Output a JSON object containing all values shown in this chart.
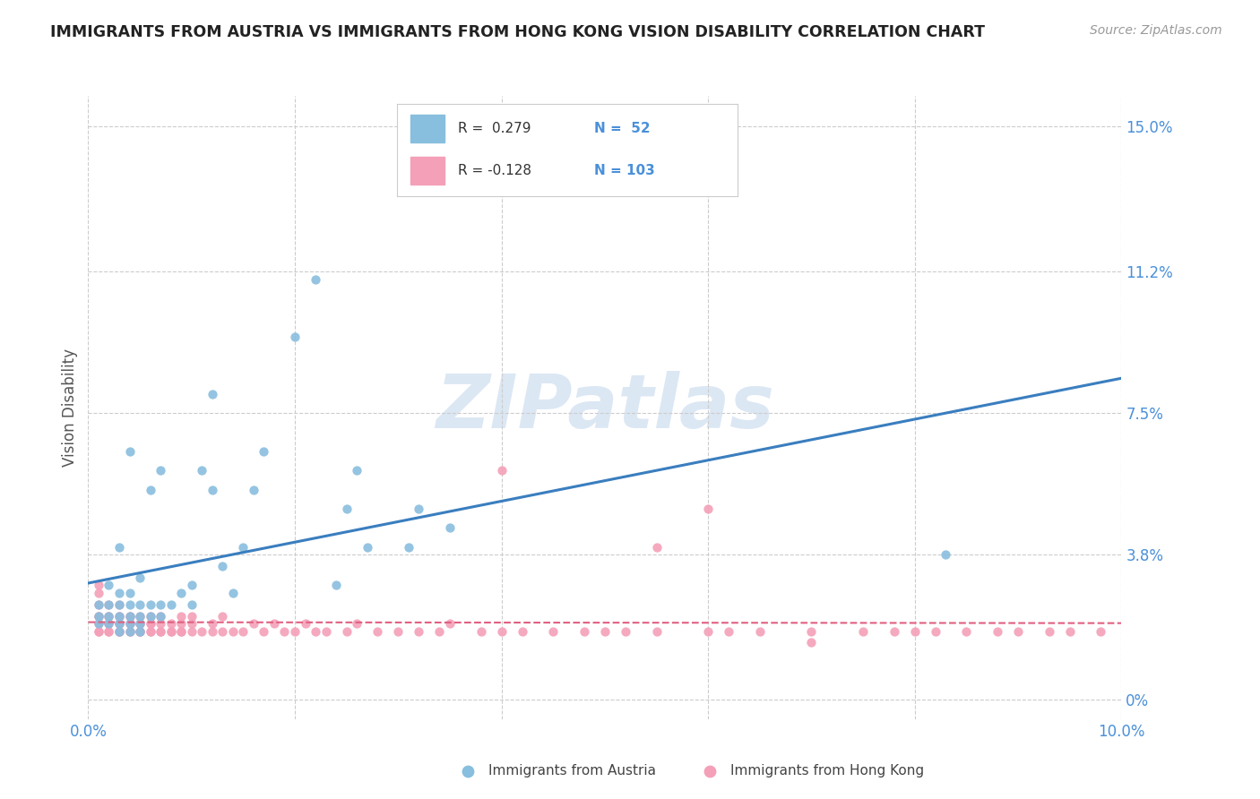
{
  "title": "IMMIGRANTS FROM AUSTRIA VS IMMIGRANTS FROM HONG KONG VISION DISABILITY CORRELATION CHART",
  "source": "Source: ZipAtlas.com",
  "ylabel": "Vision Disability",
  "xlim": [
    0.0,
    0.1
  ],
  "ylim": [
    -0.005,
    0.158
  ],
  "yticks": [
    0.0,
    0.038,
    0.075,
    0.112,
    0.15
  ],
  "ytick_labels": [
    "0%",
    "3.8%",
    "7.5%",
    "11.2%",
    "15.0%"
  ],
  "xticks": [
    0.0,
    0.02,
    0.04,
    0.06,
    0.08,
    0.1
  ],
  "xtick_labels": [
    "0.0%",
    "",
    "",
    "",
    "",
    "10.0%"
  ],
  "color_austria": "#88bede",
  "color_hk": "#f4a0b8",
  "trend_color_austria": "#3a7ebf",
  "trend_color_hk": "#e06080",
  "R_austria": "0.279",
  "N_austria": "52",
  "R_hk": "-0.128",
  "N_hk": "103",
  "legend_label_austria": "Immigrants from Austria",
  "legend_label_hk": "Immigrants from Hong Kong",
  "watermark": "ZIPatlas",
  "bg": "#ffffff",
  "grid_color": "#cccccc",
  "title_color": "#222222",
  "tick_color": "#4a90d9",
  "austria_x": [
    0.001,
    0.001,
    0.001,
    0.002,
    0.002,
    0.002,
    0.002,
    0.003,
    0.003,
    0.003,
    0.003,
    0.003,
    0.003,
    0.004,
    0.004,
    0.004,
    0.004,
    0.004,
    0.004,
    0.005,
    0.005,
    0.005,
    0.005,
    0.005,
    0.006,
    0.006,
    0.006,
    0.007,
    0.007,
    0.007,
    0.008,
    0.009,
    0.01,
    0.01,
    0.011,
    0.012,
    0.012,
    0.013,
    0.014,
    0.015,
    0.016,
    0.017,
    0.02,
    0.022,
    0.024,
    0.025,
    0.026,
    0.027,
    0.031,
    0.032,
    0.035,
    0.083
  ],
  "austria_y": [
    0.02,
    0.022,
    0.025,
    0.02,
    0.022,
    0.025,
    0.03,
    0.018,
    0.02,
    0.022,
    0.025,
    0.028,
    0.04,
    0.018,
    0.02,
    0.022,
    0.025,
    0.028,
    0.065,
    0.018,
    0.02,
    0.022,
    0.025,
    0.032,
    0.022,
    0.025,
    0.055,
    0.022,
    0.025,
    0.06,
    0.025,
    0.028,
    0.025,
    0.03,
    0.06,
    0.055,
    0.08,
    0.035,
    0.028,
    0.04,
    0.055,
    0.065,
    0.095,
    0.11,
    0.03,
    0.05,
    0.06,
    0.04,
    0.04,
    0.05,
    0.045,
    0.038
  ],
  "hk_x": [
    0.001,
    0.001,
    0.001,
    0.001,
    0.001,
    0.001,
    0.001,
    0.001,
    0.002,
    0.002,
    0.002,
    0.002,
    0.002,
    0.002,
    0.002,
    0.003,
    0.003,
    0.003,
    0.003,
    0.003,
    0.003,
    0.003,
    0.003,
    0.003,
    0.004,
    0.004,
    0.004,
    0.004,
    0.004,
    0.004,
    0.005,
    0.005,
    0.005,
    0.005,
    0.005,
    0.005,
    0.006,
    0.006,
    0.006,
    0.006,
    0.006,
    0.007,
    0.007,
    0.007,
    0.007,
    0.008,
    0.008,
    0.008,
    0.009,
    0.009,
    0.009,
    0.009,
    0.01,
    0.01,
    0.01,
    0.011,
    0.012,
    0.012,
    0.013,
    0.013,
    0.014,
    0.015,
    0.016,
    0.017,
    0.018,
    0.019,
    0.02,
    0.021,
    0.022,
    0.023,
    0.025,
    0.026,
    0.028,
    0.03,
    0.032,
    0.034,
    0.035,
    0.038,
    0.04,
    0.042,
    0.045,
    0.048,
    0.05,
    0.052,
    0.055,
    0.06,
    0.062,
    0.065,
    0.07,
    0.075,
    0.078,
    0.08,
    0.082,
    0.085,
    0.088,
    0.09,
    0.093,
    0.095,
    0.098,
    0.06,
    0.04,
    0.055,
    0.07
  ],
  "hk_y": [
    0.018,
    0.02,
    0.022,
    0.025,
    0.028,
    0.03,
    0.018,
    0.022,
    0.018,
    0.02,
    0.022,
    0.025,
    0.018,
    0.02,
    0.022,
    0.018,
    0.02,
    0.022,
    0.018,
    0.02,
    0.018,
    0.022,
    0.025,
    0.02,
    0.018,
    0.02,
    0.022,
    0.018,
    0.02,
    0.022,
    0.018,
    0.02,
    0.022,
    0.018,
    0.02,
    0.018,
    0.018,
    0.02,
    0.022,
    0.018,
    0.02,
    0.018,
    0.02,
    0.022,
    0.018,
    0.018,
    0.02,
    0.018,
    0.018,
    0.02,
    0.022,
    0.018,
    0.018,
    0.02,
    0.022,
    0.018,
    0.018,
    0.02,
    0.018,
    0.022,
    0.018,
    0.018,
    0.02,
    0.018,
    0.02,
    0.018,
    0.018,
    0.02,
    0.018,
    0.018,
    0.018,
    0.02,
    0.018,
    0.018,
    0.018,
    0.018,
    0.02,
    0.018,
    0.018,
    0.018,
    0.018,
    0.018,
    0.018,
    0.018,
    0.018,
    0.018,
    0.018,
    0.018,
    0.018,
    0.018,
    0.018,
    0.018,
    0.018,
    0.018,
    0.018,
    0.018,
    0.018,
    0.018,
    0.018,
    0.05,
    0.06,
    0.04,
    0.015
  ]
}
